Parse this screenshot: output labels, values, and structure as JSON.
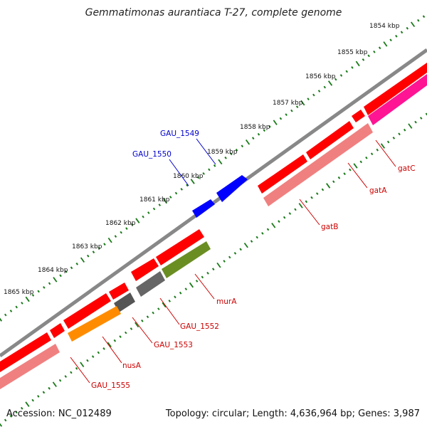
{
  "title": "Gemmatimonas aurantiaca T-27, complete genome",
  "footer": {
    "accession": "Accession: NC_012489",
    "summary": "Topology: circular; Length: 4,636,964 bp; Genes: 3,987"
  },
  "colors": {
    "backbone": "#888888",
    "tick": "#1a7a1a",
    "forward_cds": "#ff0000",
    "outer_label": "#0000cc",
    "inner_label": "#cc0000",
    "blue_gene": "#0000ff",
    "gatA_bar": "#f08080",
    "gatC_bar": "#ff1493",
    "murA_bar": "#6b8e23",
    "GAU_1552_bar": "#666666",
    "GAU_1553_bar": "#555555",
    "nusA_bar": "#ff8c00",
    "GAU_1555_bar": "#f08080"
  },
  "scale_labels": [
    "1854 kbp",
    "1855 kbp",
    "1856 kbp",
    "1857 kbp",
    "1858 kbp",
    "1859 kbp",
    "1860 kbp",
    "1861 kbp",
    "1862 kbp",
    "1863 kbp",
    "1864 kbp",
    "1865 kbp"
  ],
  "outer_gene_labels": [
    "GAU_1549",
    "GAU_1550"
  ],
  "inner_gene_labels": [
    "gatC",
    "gatA",
    "gatB",
    "murA",
    "GAU_1552",
    "GAU_1553",
    "nusA",
    "GAU_1555"
  ]
}
